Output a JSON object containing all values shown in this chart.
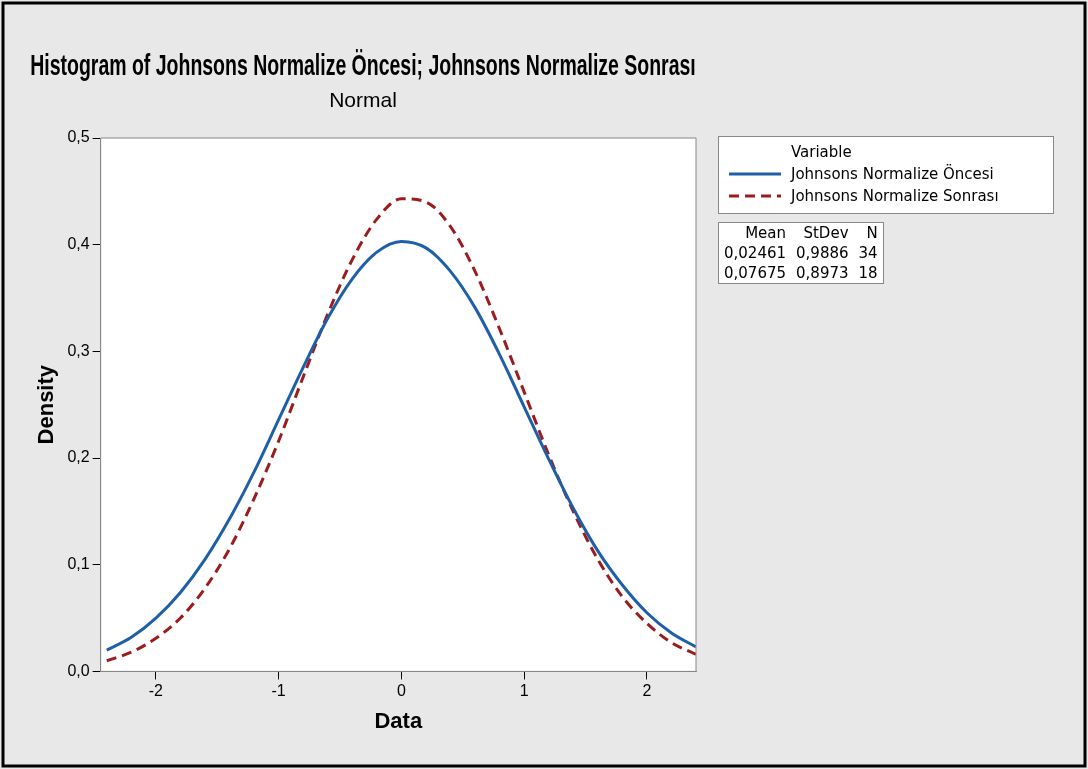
{
  "chart_data": {
    "type": "line",
    "title": "Histogram of Johnsons Normalize Öncesi; Johnsons Normalize Sonrası",
    "subtitle": "Normal",
    "xlabel": "Data",
    "ylabel": "Density",
    "legend_title": "Variable",
    "legend": "right",
    "grid": false,
    "marker": "none",
    "xlim": [
      -2.45,
      2.4
    ],
    "ylim": [
      0,
      0.5
    ],
    "xticks": [
      -2,
      -1,
      0,
      1,
      2
    ],
    "yticks": [
      {
        "value": 0,
        "label": "0,0"
      },
      {
        "value": 0.1,
        "label": "0,1"
      },
      {
        "value": 0.2,
        "label": "0,2"
      },
      {
        "value": 0.3,
        "label": "0,3"
      },
      {
        "value": 0.4,
        "label": "0,4"
      },
      {
        "value": 0.5,
        "label": "0,5"
      }
    ],
    "x": [
      -2.4,
      -2.2,
      -2.0,
      -1.8,
      -1.6,
      -1.4,
      -1.2,
      -1.0,
      -0.8,
      -0.6,
      -0.4,
      -0.2,
      0,
      0.2,
      0.4,
      0.6,
      0.8,
      1.0,
      1.2,
      1.4,
      1.6,
      1.8,
      2.0,
      2.2,
      2.4
    ],
    "series": [
      {
        "name": "Johnsons Normalize Öncesi",
        "color": "#1f5fa8",
        "line_style": "solid",
        "values": [
          0.02,
          0.032,
          0.05,
          0.074,
          0.105,
          0.143,
          0.187,
          0.236,
          0.285,
          0.331,
          0.368,
          0.393,
          0.403,
          0.397,
          0.375,
          0.341,
          0.297,
          0.248,
          0.199,
          0.153,
          0.113,
          0.081,
          0.055,
          0.036,
          0.023
        ]
      },
      {
        "name": "Johnsons Normalize Sonrası",
        "color": "#9b1c1c",
        "line_style": "dashed",
        "values": [
          0.01,
          0.018,
          0.031,
          0.05,
          0.078,
          0.115,
          0.162,
          0.216,
          0.276,
          0.335,
          0.386,
          0.424,
          0.443,
          0.44,
          0.417,
          0.375,
          0.321,
          0.262,
          0.203,
          0.15,
          0.105,
          0.07,
          0.045,
          0.027,
          0.016
        ]
      }
    ],
    "annotations": [
      "Mean",
      "StDev",
      "N",
      "0,02461",
      "0,9886",
      "34",
      "0,07675",
      "0,8973",
      "18"
    ]
  }
}
